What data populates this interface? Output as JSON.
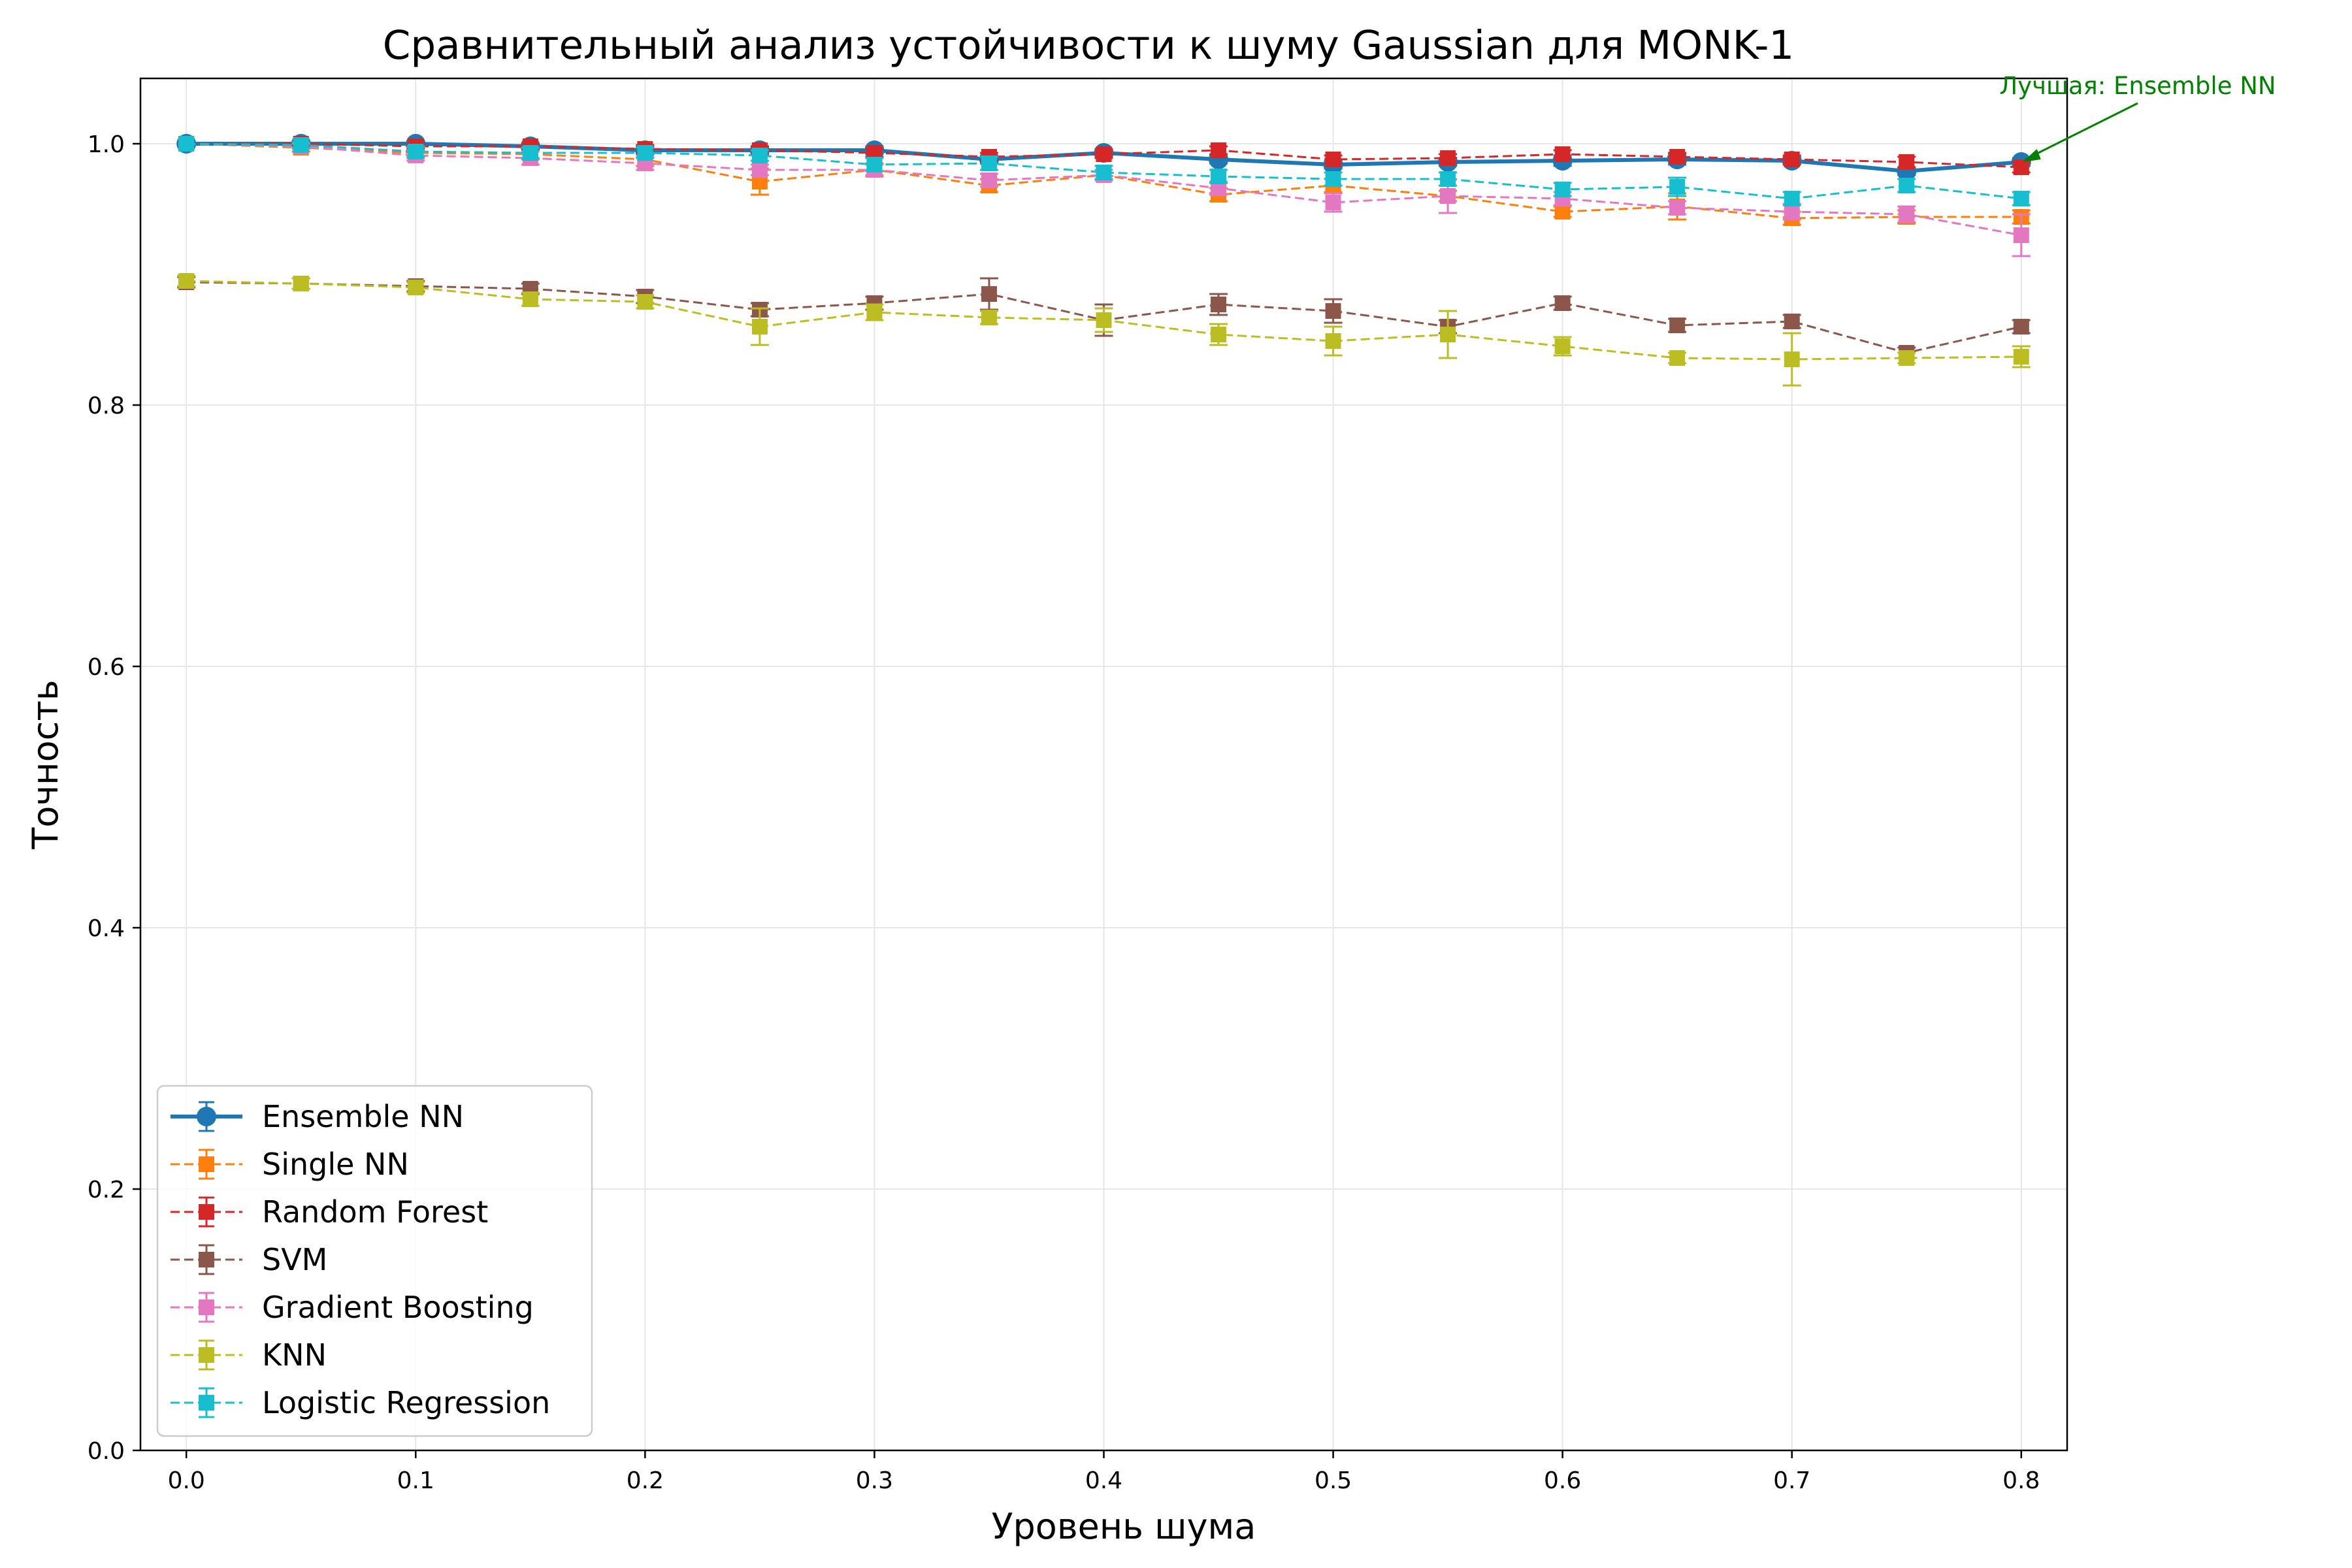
{
  "chart_data": {
    "type": "line",
    "title": "Сравнительный анализ устойчивости к шуму Gaussian для MONK-1",
    "xlabel": "Уровень шума",
    "ylabel": "Точность",
    "xlim": [
      -0.02,
      0.82
    ],
    "ylim": [
      0.0,
      1.05
    ],
    "xticks": [
      0.0,
      0.1,
      0.2,
      0.3,
      0.4,
      0.5,
      0.6,
      0.7,
      0.8
    ],
    "xtick_labels": [
      "0.0",
      "0.1",
      "0.2",
      "0.3",
      "0.4",
      "0.5",
      "0.6",
      "0.7",
      "0.8"
    ],
    "yticks": [
      0.0,
      0.2,
      0.4,
      0.6,
      0.8,
      1.0
    ],
    "ytick_labels": [
      "0.0",
      "0.2",
      "0.4",
      "0.6",
      "0.8",
      "1.0"
    ],
    "grid": true,
    "legend_position": "lower-left",
    "x": [
      0.0,
      0.05,
      0.1,
      0.15,
      0.2,
      0.25,
      0.3,
      0.35,
      0.4,
      0.45,
      0.5,
      0.55,
      0.6,
      0.65,
      0.7,
      0.75,
      0.8
    ],
    "series": [
      {
        "name": "Ensemble NN",
        "color": "#1f77b4",
        "marker": "circle",
        "line": "solid",
        "values": [
          1.0,
          1.0,
          1.0,
          0.998,
          0.995,
          0.995,
          0.995,
          0.988,
          0.993,
          0.988,
          0.984,
          0.986,
          0.987,
          0.988,
          0.987,
          0.979,
          0.986
        ],
        "errors": [
          0,
          0.001,
          0.002,
          0.002,
          0.003,
          0.003,
          0.003,
          0.003,
          0.003,
          0.003,
          0.003,
          0.003,
          0.004,
          0.004,
          0.003,
          0.003,
          0.003
        ]
      },
      {
        "name": "Single NN",
        "color": "#ff7f0e",
        "marker": "square",
        "line": "dashed",
        "values": [
          1.0,
          0.997,
          0.993,
          0.992,
          0.988,
          0.971,
          0.98,
          0.968,
          0.976,
          0.961,
          0.968,
          0.96,
          0.948,
          0.952,
          0.943,
          0.944,
          0.944
        ],
        "errors": [
          0,
          0.003,
          0.004,
          0.004,
          0.005,
          0.01,
          0.005,
          0.005,
          0.004,
          0.005,
          0.005,
          0.004,
          0.004,
          0.01,
          0.005,
          0.005,
          0.005
        ]
      },
      {
        "name": "Random Forest",
        "color": "#d62728",
        "marker": "square",
        "line": "dashed",
        "values": [
          1.0,
          1.0,
          0.998,
          0.998,
          0.996,
          0.995,
          0.993,
          0.99,
          0.992,
          0.995,
          0.988,
          0.989,
          0.992,
          0.99,
          0.988,
          0.986,
          0.982
        ],
        "errors": [
          0,
          0.001,
          0.002,
          0.002,
          0.003,
          0.003,
          0.003,
          0.003,
          0.003,
          0.003,
          0.003,
          0.003,
          0.003,
          0.003,
          0.003,
          0.004,
          0.004
        ]
      },
      {
        "name": "SVM",
        "color": "#8c564b",
        "marker": "square",
        "line": "dashed",
        "values": [
          0.894,
          0.893,
          0.891,
          0.889,
          0.883,
          0.873,
          0.878,
          0.885,
          0.865,
          0.877,
          0.872,
          0.86,
          0.878,
          0.861,
          0.864,
          0.84,
          0.86
        ],
        "errors": [
          0.004,
          0.004,
          0.004,
          0.004,
          0.005,
          0.005,
          0.005,
          0.012,
          0.012,
          0.008,
          0.009,
          0.005,
          0.005,
          0.005,
          0.005,
          0.004,
          0.005
        ]
      },
      {
        "name": "Gradient Boosting",
        "color": "#e377c2",
        "marker": "square",
        "line": "dashed",
        "values": [
          1.0,
          0.998,
          0.991,
          0.989,
          0.985,
          0.98,
          0.98,
          0.972,
          0.976,
          0.966,
          0.955,
          0.96,
          0.958,
          0.951,
          0.948,
          0.946,
          0.93
        ],
        "errors": [
          0,
          0.002,
          0.004,
          0.005,
          0.005,
          0.004,
          0.004,
          0.005,
          0.004,
          0.005,
          0.007,
          0.013,
          0.005,
          0.005,
          0.006,
          0.006,
          0.016
        ]
      },
      {
        "name": "KNN",
        "color": "#bcbd22",
        "marker": "square",
        "line": "dashed",
        "values": [
          0.895,
          0.893,
          0.89,
          0.881,
          0.879,
          0.86,
          0.871,
          0.867,
          0.865,
          0.854,
          0.849,
          0.854,
          0.845,
          0.836,
          0.835,
          0.836,
          0.837
        ],
        "errors": [
          0.004,
          0.004,
          0.004,
          0.005,
          0.005,
          0.014,
          0.006,
          0.005,
          0.009,
          0.008,
          0.011,
          0.018,
          0.007,
          0.004,
          0.02,
          0.004,
          0.008
        ]
      },
      {
        "name": "Logistic Regression",
        "color": "#17becf",
        "marker": "square",
        "line": "dashed",
        "values": [
          1.0,
          0.999,
          0.994,
          0.993,
          0.993,
          0.991,
          0.984,
          0.985,
          0.978,
          0.975,
          0.973,
          0.973,
          0.965,
          0.967,
          0.958,
          0.968,
          0.958
        ],
        "errors": [
          0,
          0.002,
          0.004,
          0.004,
          0.004,
          0.004,
          0.005,
          0.005,
          0.005,
          0.005,
          0.005,
          0.005,
          0.005,
          0.007,
          0.005,
          0.005,
          0.005
        ]
      }
    ],
    "annotation": {
      "text": "Лучшая: Ensemble NN",
      "color": "#008000",
      "target_x": 0.8,
      "target_y": 0.986
    }
  }
}
